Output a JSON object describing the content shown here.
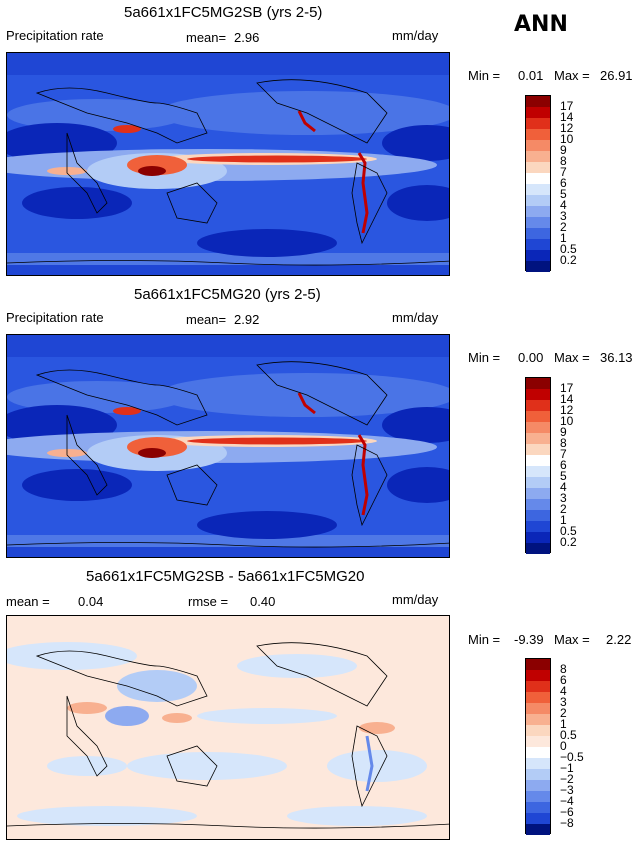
{
  "season": "ANN",
  "panels": [
    {
      "title": "5a661x1FC5MG2SB (yrs 2-5)",
      "field": "Precipitation rate",
      "mean_label": "mean=",
      "mean_value": "2.96",
      "units": "mm/day",
      "min_label": "Min =",
      "min_value": "0.01",
      "max_label": "Max =",
      "max_value": "26.91",
      "levels": [
        "17",
        "14",
        "12",
        "10",
        "9",
        "8",
        "7",
        "6",
        "5",
        "4",
        "3",
        "2",
        "1",
        "0.5",
        "0.2"
      ],
      "colors": [
        "#8b0000",
        "#c00000",
        "#e0301a",
        "#f0603a",
        "#f58a66",
        "#f8b090",
        "#fbd7bf",
        "#ffffff",
        "#d6e6fb",
        "#b3ccf6",
        "#8daaf0",
        "#6589ea",
        "#3d66e0",
        "#1f46d4",
        "#0a26b8",
        "#00137f"
      ]
    },
    {
      "title": "5a661x1FC5MG20 (yrs 2-5)",
      "field": "Precipitation rate",
      "mean_label": "mean=",
      "mean_value": "2.92",
      "units": "mm/day",
      "min_label": "Min =",
      "min_value": "0.00",
      "max_label": "Max =",
      "max_value": "36.13",
      "levels": [
        "17",
        "14",
        "12",
        "10",
        "9",
        "8",
        "7",
        "6",
        "5",
        "4",
        "3",
        "2",
        "1",
        "0.5",
        "0.2"
      ],
      "colors": [
        "#8b0000",
        "#c00000",
        "#e0301a",
        "#f0603a",
        "#f58a66",
        "#f8b090",
        "#fbd7bf",
        "#ffffff",
        "#d6e6fb",
        "#b3ccf6",
        "#8daaf0",
        "#6589ea",
        "#3d66e0",
        "#1f46d4",
        "#0a26b8",
        "#00137f"
      ]
    },
    {
      "title": "5a661x1FC5MG2SB - 5a661x1FC5MG20",
      "mean_label": "mean =",
      "mean_value": "0.04",
      "rmse_label": "rmse =",
      "rmse_value": "0.40",
      "units": "mm/day",
      "min_label": "Min =",
      "min_value": "-9.39",
      "max_label": "Max =",
      "max_value": "2.22",
      "levels": [
        "8",
        "6",
        "4",
        "3",
        "2",
        "1",
        "0.5",
        "0",
        "−0.5",
        "−1",
        "−2",
        "−3",
        "−4",
        "−6",
        "−8"
      ],
      "colors": [
        "#8b0000",
        "#c00000",
        "#e0301a",
        "#f0603a",
        "#f58a66",
        "#f8b090",
        "#fbd7bf",
        "#fde8dc",
        "#ffffff",
        "#d6e6fb",
        "#b3ccf6",
        "#8daaf0",
        "#6589ea",
        "#3d66e0",
        "#1f46d4",
        "#00137f"
      ]
    }
  ]
}
